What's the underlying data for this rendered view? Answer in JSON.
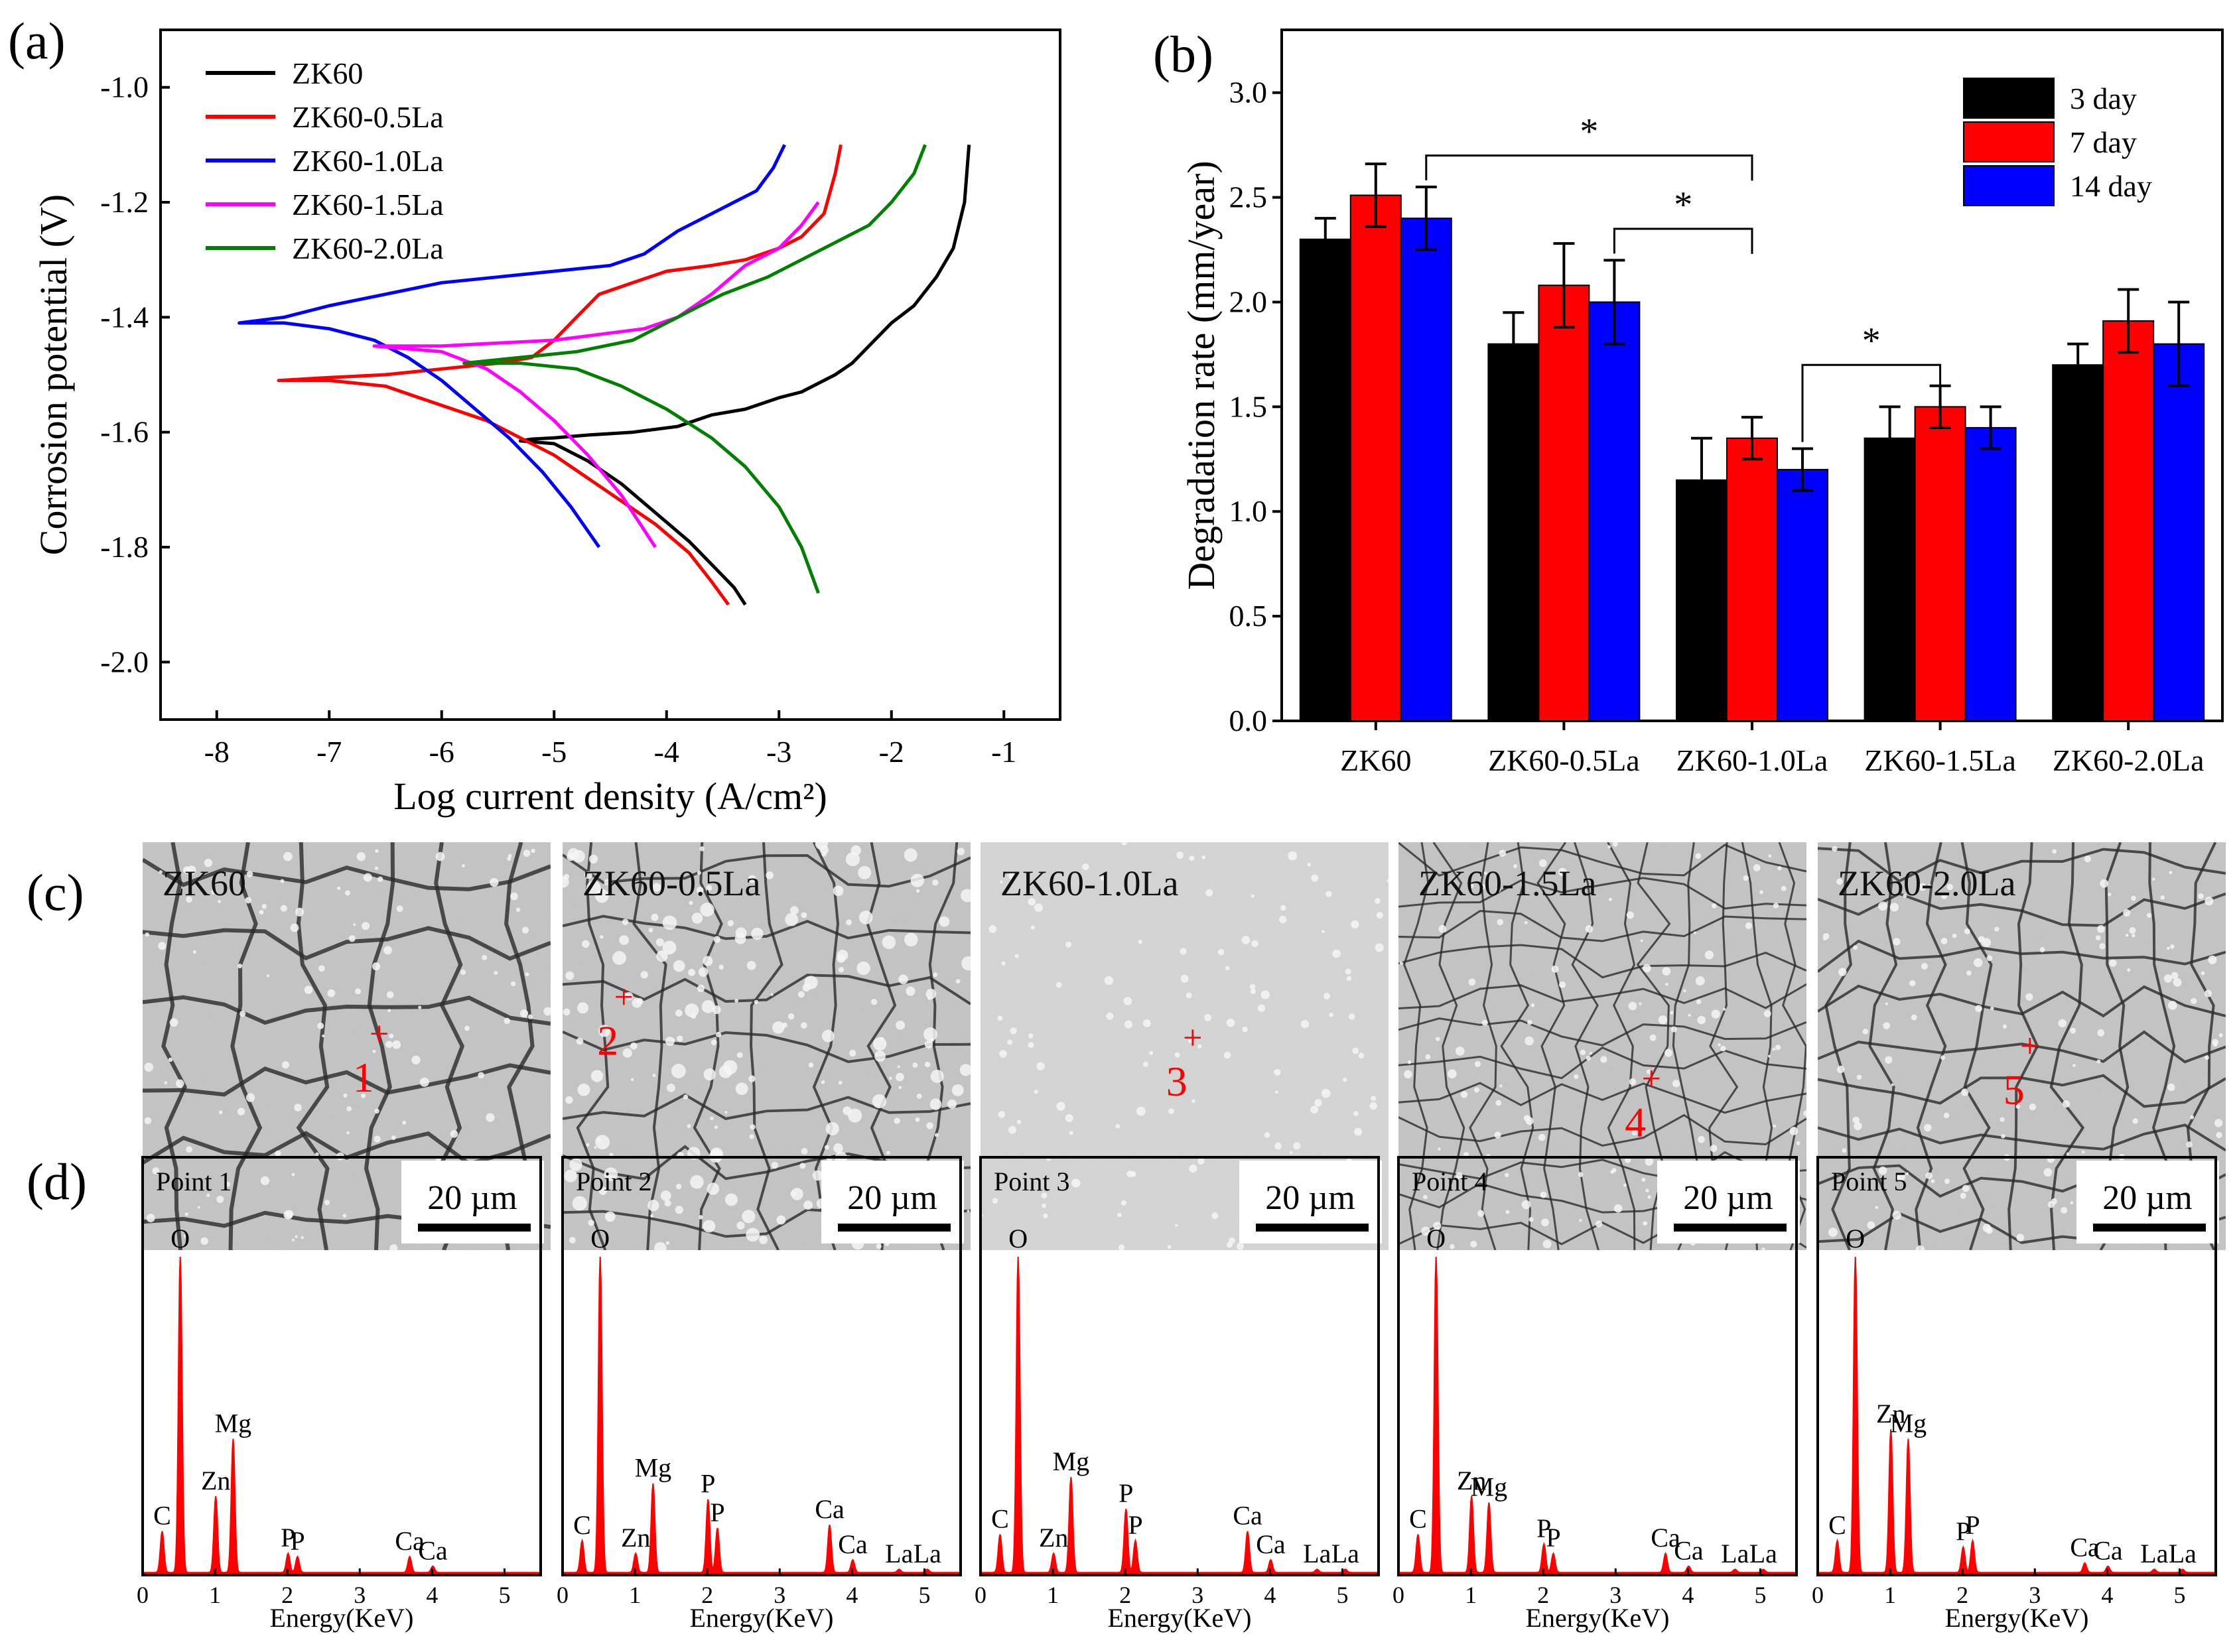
{
  "panels": {
    "a": "(a)",
    "b": "(b)",
    "c": "(c)",
    "d": "(d)"
  },
  "chart_data": [
    {
      "id": "a",
      "type": "line",
      "xlabel": "Log current density (A/cm²)",
      "ylabel": "Corrosion potential (V)",
      "xlim": [
        -8.5,
        -0.5
      ],
      "ylim": [
        -2.1,
        -0.9
      ],
      "xticks": [
        -8,
        -7,
        -6,
        -5,
        -4,
        -3,
        -2,
        -1
      ],
      "yticks": [
        -2.0,
        -1.8,
        -1.6,
        -1.4,
        -1.2,
        -1.0
      ],
      "legend": "top-left",
      "series": [
        {
          "name": "ZK60",
          "color": "#000000",
          "x": [
            -1.31,
            -1.35,
            -1.45,
            -1.6,
            -1.8,
            -2.0,
            -2.2,
            -2.35,
            -2.5,
            -2.8,
            -3.0,
            -3.3,
            -3.6,
            -3.9,
            -4.3,
            -4.7,
            -5.0,
            -5.2,
            -5.3,
            -5.0,
            -4.7,
            -4.4,
            -4.1,
            -3.8,
            -3.6,
            -3.4,
            -3.3
          ],
          "y": [
            -1.1,
            -1.2,
            -1.28,
            -1.33,
            -1.38,
            -1.41,
            -1.45,
            -1.48,
            -1.5,
            -1.53,
            -1.54,
            -1.56,
            -1.57,
            -1.59,
            -1.6,
            -1.605,
            -1.61,
            -1.612,
            -1.615,
            -1.62,
            -1.65,
            -1.69,
            -1.74,
            -1.79,
            -1.83,
            -1.87,
            -1.9
          ]
        },
        {
          "name": "ZK60-0.5La",
          "color": "#ff0000",
          "x": [
            -2.45,
            -2.5,
            -2.6,
            -2.8,
            -3.0,
            -3.3,
            -3.6,
            -4.0,
            -4.3,
            -4.6,
            -4.8,
            -5.0,
            -5.2,
            -5.5,
            -6.0,
            -6.5,
            -7.0,
            -7.45,
            -7.0,
            -6.5,
            -6.2,
            -5.9,
            -5.6,
            -5.3,
            -5.0,
            -4.7,
            -4.4,
            -4.1,
            -3.8,
            -3.6,
            -3.45
          ],
          "y": [
            -1.1,
            -1.15,
            -1.22,
            -1.26,
            -1.28,
            -1.3,
            -1.31,
            -1.32,
            -1.34,
            -1.36,
            -1.4,
            -1.44,
            -1.47,
            -1.48,
            -1.49,
            -1.5,
            -1.505,
            -1.51,
            -1.51,
            -1.52,
            -1.54,
            -1.56,
            -1.58,
            -1.61,
            -1.64,
            -1.68,
            -1.72,
            -1.76,
            -1.81,
            -1.86,
            -1.9
          ]
        },
        {
          "name": "ZK60-1.0La",
          "color": "#0000ff",
          "x": [
            -2.95,
            -3.05,
            -3.2,
            -3.4,
            -3.6,
            -3.9,
            -4.2,
            -4.5,
            -5.0,
            -5.5,
            -6.0,
            -6.5,
            -7.0,
            -7.4,
            -7.8,
            -7.4,
            -7.0,
            -6.6,
            -6.3,
            -6.0,
            -5.7,
            -5.4,
            -5.1,
            -4.85,
            -4.6
          ],
          "y": [
            -1.1,
            -1.14,
            -1.18,
            -1.2,
            -1.22,
            -1.25,
            -1.29,
            -1.31,
            -1.32,
            -1.33,
            -1.34,
            -1.36,
            -1.38,
            -1.4,
            -1.41,
            -1.41,
            -1.42,
            -1.44,
            -1.47,
            -1.51,
            -1.56,
            -1.61,
            -1.67,
            -1.73,
            -1.8
          ]
        },
        {
          "name": "ZK60-1.5La",
          "color": "#ff00ff",
          "x": [
            -2.65,
            -2.8,
            -3.0,
            -3.3,
            -3.6,
            -3.9,
            -4.2,
            -4.6,
            -5.0,
            -5.5,
            -6.0,
            -6.6,
            -6.0,
            -5.6,
            -5.3,
            -5.0,
            -4.7,
            -4.4,
            -4.1
          ],
          "y": [
            -1.2,
            -1.24,
            -1.28,
            -1.31,
            -1.36,
            -1.4,
            -1.42,
            -1.43,
            -1.44,
            -1.445,
            -1.45,
            -1.45,
            -1.46,
            -1.49,
            -1.53,
            -1.58,
            -1.64,
            -1.71,
            -1.8
          ]
        },
        {
          "name": "ZK60-2.0La",
          "color": "#008000",
          "x": [
            -1.7,
            -1.8,
            -2.0,
            -2.2,
            -2.5,
            -2.8,
            -3.1,
            -3.5,
            -3.9,
            -4.3,
            -4.8,
            -5.3,
            -5.8,
            -5.3,
            -4.8,
            -4.4,
            -4.0,
            -3.6,
            -3.3,
            -3.0,
            -2.8,
            -2.65
          ],
          "y": [
            -1.1,
            -1.15,
            -1.2,
            -1.24,
            -1.27,
            -1.3,
            -1.33,
            -1.36,
            -1.4,
            -1.44,
            -1.46,
            -1.47,
            -1.48,
            -1.48,
            -1.49,
            -1.52,
            -1.56,
            -1.61,
            -1.66,
            -1.73,
            -1.8,
            -1.88
          ]
        }
      ]
    },
    {
      "id": "b",
      "type": "bar",
      "ylabel": "Degradation rate (mm/year)",
      "ylim": [
        0,
        3.3
      ],
      "yticks": [
        "0.0",
        "0.5",
        "1.0",
        "1.5",
        "2.0",
        "2.5",
        "3.0"
      ],
      "categories": [
        "ZK60",
        "ZK60-0.5La",
        "ZK60-1.0La",
        "ZK60-1.5La",
        "ZK60-2.0La"
      ],
      "legend": "top-right",
      "series": [
        {
          "name": "3 day",
          "color": "#000000",
          "values": [
            2.3,
            1.8,
            1.15,
            1.35,
            1.7
          ],
          "errors": [
            0.1,
            0.15,
            0.2,
            0.15,
            0.1
          ]
        },
        {
          "name": "7 day",
          "color": "#ff0000",
          "values": [
            2.51,
            2.08,
            1.35,
            1.5,
            1.91
          ],
          "errors": [
            0.15,
            0.2,
            0.1,
            0.1,
            0.15
          ]
        },
        {
          "name": "14 day",
          "color": "#0000ff",
          "values": [
            2.4,
            2.0,
            1.2,
            1.4,
            1.8
          ],
          "errors": [
            0.15,
            0.2,
            0.1,
            0.1,
            0.2
          ]
        }
      ],
      "significance": [
        {
          "from": "ZK60",
          "to": "ZK60-1.0La",
          "level": 2.7,
          "label": "*"
        },
        {
          "from": "ZK60-0.5La",
          "to": "ZK60-1.0La",
          "level": 2.35,
          "label": "*"
        },
        {
          "from": "ZK60-1.0La",
          "to": "ZK60-1.5La",
          "level": 1.7,
          "label": "*"
        }
      ]
    },
    {
      "id": "d",
      "type": "line",
      "xlabel": "Energy(KeV)",
      "xticks": [
        0,
        1,
        2,
        3,
        4,
        5
      ],
      "xlim": [
        0,
        5.5
      ],
      "spectra": [
        {
          "title": "Point 1",
          "peaks": [
            [
              0.27,
              0.13
            ],
            [
              0.52,
              1.0
            ],
            [
              1.01,
              0.24
            ],
            [
              1.25,
              0.42
            ],
            [
              2.01,
              0.06
            ],
            [
              2.14,
              0.05
            ],
            [
              3.69,
              0.05
            ],
            [
              4.01,
              0.02
            ]
          ],
          "labels": [
            [
              "C",
              0.27
            ],
            [
              "O",
              0.52
            ],
            [
              "Zn",
              1.01
            ],
            [
              "Mg",
              1.25
            ],
            [
              "P",
              2.01
            ],
            [
              "P",
              2.14
            ],
            [
              "Ca",
              3.69
            ],
            [
              "Ca",
              4.01
            ]
          ]
        },
        {
          "title": "Point 2",
          "peaks": [
            [
              0.27,
              0.1
            ],
            [
              0.52,
              1.0
            ],
            [
              1.01,
              0.06
            ],
            [
              1.25,
              0.28
            ],
            [
              2.01,
              0.23
            ],
            [
              2.14,
              0.14
            ],
            [
              3.69,
              0.15
            ],
            [
              4.01,
              0.04
            ],
            [
              4.65,
              0.01
            ],
            [
              5.04,
              0.01
            ]
          ],
          "labels": [
            [
              "C",
              0.27
            ],
            [
              "O",
              0.52
            ],
            [
              "Zn",
              1.01
            ],
            [
              "Mg",
              1.25
            ],
            [
              "P",
              2.01
            ],
            [
              "P",
              2.14
            ],
            [
              "Ca",
              3.69
            ],
            [
              "Ca",
              4.01
            ],
            [
              "La",
              4.65
            ],
            [
              "La",
              5.04
            ]
          ]
        },
        {
          "title": "Point 3",
          "peaks": [
            [
              0.27,
              0.12
            ],
            [
              0.52,
              1.0
            ],
            [
              1.01,
              0.06
            ],
            [
              1.25,
              0.3
            ],
            [
              2.01,
              0.2
            ],
            [
              2.14,
              0.1
            ],
            [
              3.69,
              0.13
            ],
            [
              4.01,
              0.04
            ],
            [
              4.65,
              0.01
            ],
            [
              5.04,
              0.01
            ]
          ],
          "labels": [
            [
              "C",
              0.27
            ],
            [
              "O",
              0.52
            ],
            [
              "Zn",
              1.01
            ],
            [
              "Mg",
              1.25
            ],
            [
              "P",
              2.01
            ],
            [
              "P",
              2.14
            ],
            [
              "Ca",
              3.69
            ],
            [
              "Ca",
              4.01
            ],
            [
              "La",
              4.65
            ],
            [
              "La",
              5.04
            ]
          ]
        },
        {
          "title": "Point 4",
          "peaks": [
            [
              0.27,
              0.12
            ],
            [
              0.52,
              1.0
            ],
            [
              1.01,
              0.24
            ],
            [
              1.25,
              0.22
            ],
            [
              2.01,
              0.09
            ],
            [
              2.14,
              0.06
            ],
            [
              3.69,
              0.06
            ],
            [
              4.01,
              0.02
            ],
            [
              4.65,
              0.01
            ],
            [
              5.04,
              0.01
            ]
          ],
          "labels": [
            [
              "C",
              0.27
            ],
            [
              "O",
              0.52
            ],
            [
              "Zn",
              1.01
            ],
            [
              "Mg",
              1.25
            ],
            [
              "P",
              2.01
            ],
            [
              "P",
              2.14
            ],
            [
              "Ca",
              3.69
            ],
            [
              "Ca",
              4.01
            ],
            [
              "La",
              4.65
            ],
            [
              "La",
              5.04
            ]
          ]
        },
        {
          "title": "Point 5",
          "peaks": [
            [
              0.27,
              0.1
            ],
            [
              0.52,
              1.0
            ],
            [
              1.01,
              0.45
            ],
            [
              1.25,
              0.42
            ],
            [
              2.01,
              0.08
            ],
            [
              2.14,
              0.1
            ],
            [
              3.69,
              0.03
            ],
            [
              4.01,
              0.02
            ],
            [
              4.65,
              0.01
            ],
            [
              5.04,
              0.01
            ]
          ],
          "labels": [
            [
              "C",
              0.27
            ],
            [
              "O",
              0.52
            ],
            [
              "Zn",
              1.01
            ],
            [
              "Mg",
              1.25
            ],
            [
              "P",
              2.01
            ],
            [
              "P",
              2.14
            ],
            [
              "Ca",
              3.69
            ],
            [
              "Ca",
              4.01
            ],
            [
              "La",
              4.65
            ],
            [
              "La",
              5.04
            ]
          ]
        }
      ]
    }
  ],
  "micrographs": [
    {
      "label": "ZK60",
      "point": "1",
      "scale": "20 µm",
      "cracks": "coarse"
    },
    {
      "label": "ZK60-0.5La",
      "point": "2",
      "scale": "20 µm",
      "cracks": "rough"
    },
    {
      "label": "ZK60-1.0La",
      "point": "3",
      "scale": "20 µm",
      "cracks": "none"
    },
    {
      "label": "ZK60-1.5La",
      "point": "4",
      "scale": "20 µm",
      "cracks": "fine"
    },
    {
      "label": "ZK60-2.0La",
      "point": "5",
      "scale": "20 µm",
      "cracks": "medium"
    }
  ]
}
